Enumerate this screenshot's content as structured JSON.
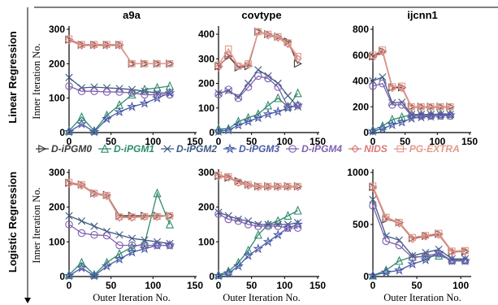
{
  "colors": {
    "D-iPGM0": "#3a3a3a",
    "D-iPGM1": "#2e8b6a",
    "D-iPGM2": "#3d5a80",
    "D-iPGM3": "#4a5aa8",
    "D-iPGM4": "#8060b0",
    "NIDS": "#d87878",
    "PG-EXTRA": "#e09a8a"
  },
  "markers": {
    "D-iPGM0": "triangle-right",
    "D-iPGM1": "triangle-up",
    "D-iPGM2": "x",
    "D-iPGM3": "star",
    "D-iPGM4": "circle",
    "NIDS": "diamond",
    "PG-EXTRA": "square"
  },
  "row_labels": [
    "Linear Regression",
    "Logistic Regression"
  ],
  "y_axis_label": "Inner Iteration No.",
  "x_axis_label": "Outer Iteration No.",
  "legend": [
    "D-iPGM0",
    "D-iPGM1",
    "D-iPGM2",
    "D-iPGM3",
    "D-iPGM4",
    "NIDS",
    "PG-EXTRA"
  ],
  "chart_data": [
    {
      "type": "line",
      "title": "a9a",
      "row": "Linear Regression",
      "xlim": [
        0,
        150
      ],
      "ylim": [
        0,
        300
      ],
      "xticks": [
        0,
        50,
        100,
        150
      ],
      "yticks": [
        0,
        100,
        200,
        300
      ],
      "x": [
        0,
        15,
        30,
        45,
        60,
        75,
        90,
        105,
        120
      ],
      "series": [
        {
          "name": "D-iPGM0",
          "values": [
            270,
            255,
            255,
            255,
            255,
            200,
            200,
            200,
            200
          ]
        },
        {
          "name": "D-iPGM1",
          "values": [
            5,
            45,
            5,
            50,
            80,
            110,
            125,
            130,
            135
          ]
        },
        {
          "name": "D-iPGM2",
          "values": [
            160,
            130,
            132,
            130,
            128,
            125,
            120,
            115,
            115
          ]
        },
        {
          "name": "D-iPGM3",
          "values": [
            2,
            25,
            2,
            40,
            60,
            75,
            85,
            100,
            115
          ]
        },
        {
          "name": "D-iPGM4",
          "values": [
            135,
            120,
            120,
            118,
            118,
            115,
            110,
            110,
            110
          ]
        },
        {
          "name": "NIDS",
          "values": [
            268,
            253,
            253,
            253,
            253,
            200,
            200,
            200,
            200
          ]
        },
        {
          "name": "PG-EXTRA",
          "values": [
            272,
            256,
            256,
            256,
            256,
            200,
            200,
            200,
            200
          ]
        }
      ]
    },
    {
      "type": "line",
      "title": "covtype",
      "row": "Linear Regression",
      "xlim": [
        0,
        150
      ],
      "ylim": [
        0,
        420
      ],
      "xticks": [
        0,
        50,
        100,
        150
      ],
      "yticks": [
        0,
        100,
        200,
        300,
        400
      ],
      "x": [
        0,
        15,
        30,
        45,
        60,
        75,
        90,
        105,
        120
      ],
      "series": [
        {
          "name": "D-iPGM0",
          "values": [
            270,
            310,
            265,
            270,
            410,
            400,
            390,
            370,
            280
          ]
        },
        {
          "name": "D-iPGM1",
          "values": [
            15,
            15,
            45,
            60,
            75,
            110,
            140,
            105,
            160
          ]
        },
        {
          "name": "D-iPGM2",
          "values": [
            160,
            170,
            145,
            200,
            255,
            230,
            200,
            150,
            105
          ]
        },
        {
          "name": "D-iPGM3",
          "values": [
            5,
            10,
            30,
            45,
            60,
            75,
            85,
            100,
            110
          ]
        },
        {
          "name": "D-iPGM4",
          "values": [
            155,
            175,
            140,
            185,
            230,
            220,
            185,
            105,
            110
          ]
        },
        {
          "name": "NIDS",
          "values": [
            265,
            315,
            270,
            275,
            410,
            395,
            385,
            360,
            300
          ]
        },
        {
          "name": "PG-EXTRA",
          "values": [
            275,
            340,
            270,
            280,
            410,
            400,
            390,
            365,
            310
          ]
        }
      ]
    },
    {
      "type": "line",
      "title": "ijcnn1",
      "row": "Linear Regression",
      "xlim": [
        0,
        150
      ],
      "ylim": [
        0,
        800
      ],
      "xticks": [
        0,
        50,
        100,
        150
      ],
      "yticks": [
        0,
        200,
        400,
        600,
        800
      ],
      "x": [
        0,
        15,
        30,
        45,
        60,
        75,
        90,
        105,
        120
      ],
      "series": [
        {
          "name": "D-iPGM0",
          "values": [
            590,
            630,
            350,
            350,
            200,
            200,
            200,
            200,
            200
          ]
        },
        {
          "name": "D-iPGM1",
          "values": [
            20,
            50,
            100,
            120,
            140,
            140,
            140,
            145,
            145
          ]
        },
        {
          "name": "D-iPGM2",
          "values": [
            400,
            430,
            230,
            235,
            140,
            140,
            140,
            140,
            140
          ]
        },
        {
          "name": "D-iPGM3",
          "values": [
            10,
            30,
            60,
            80,
            110,
            120,
            125,
            130,
            135
          ]
        },
        {
          "name": "D-iPGM4",
          "values": [
            360,
            380,
            215,
            215,
            130,
            130,
            130,
            130,
            130
          ]
        },
        {
          "name": "NIDS",
          "values": [
            580,
            625,
            345,
            345,
            195,
            195,
            195,
            195,
            195
          ]
        },
        {
          "name": "PG-EXTRA",
          "values": [
            600,
            640,
            355,
            360,
            200,
            200,
            200,
            200,
            200
          ]
        }
      ]
    },
    {
      "type": "line",
      "title": "",
      "row": "Logistic Regression",
      "xlim": [
        0,
        150
      ],
      "ylim": [
        0,
        300
      ],
      "xticks": [
        0,
        50,
        100,
        150
      ],
      "yticks": [
        0,
        100,
        200,
        300
      ],
      "x": [
        0,
        15,
        30,
        45,
        60,
        75,
        90,
        105,
        120
      ],
      "series": [
        {
          "name": "D-iPGM0",
          "values": [
            270,
            265,
            240,
            235,
            175,
            175,
            175,
            175,
            175
          ]
        },
        {
          "name": "D-iPGM1",
          "values": [
            5,
            40,
            5,
            40,
            65,
            85,
            95,
            240,
            150
          ]
        },
        {
          "name": "D-iPGM2",
          "values": [
            175,
            160,
            145,
            130,
            120,
            110,
            105,
            100,
            95
          ]
        },
        {
          "name": "D-iPGM3",
          "values": [
            2,
            25,
            2,
            30,
            50,
            70,
            80,
            90,
            90
          ]
        },
        {
          "name": "D-iPGM4",
          "values": [
            150,
            125,
            120,
            118,
            90,
            90,
            90,
            90,
            90
          ]
        },
        {
          "name": "NIDS",
          "values": [
            268,
            262,
            238,
            232,
            170,
            170,
            172,
            172,
            175
          ]
        },
        {
          "name": "PG-EXTRA",
          "values": [
            272,
            265,
            240,
            234,
            172,
            172,
            173,
            173,
            175
          ]
        }
      ]
    },
    {
      "type": "line",
      "title": "",
      "row": "Logistic Regression",
      "xlim": [
        0,
        150
      ],
      "ylim": [
        0,
        300
      ],
      "xticks": [
        0,
        50,
        100,
        150
      ],
      "yticks": [
        0,
        100,
        200,
        300
      ],
      "x": [
        0,
        15,
        30,
        45,
        60,
        75,
        90,
        105,
        120
      ],
      "series": [
        {
          "name": "D-iPGM0",
          "values": [
            290,
            285,
            275,
            265,
            260,
            260,
            260,
            260,
            260
          ]
        },
        {
          "name": "D-iPGM1",
          "values": [
            5,
            15,
            40,
            75,
            120,
            150,
            160,
            175,
            190
          ]
        },
        {
          "name": "D-iPGM2",
          "values": [
            185,
            175,
            165,
            160,
            150,
            150,
            150,
            150,
            155
          ]
        },
        {
          "name": "D-iPGM3",
          "values": [
            2,
            10,
            30,
            60,
            80,
            100,
            120,
            140,
            150
          ]
        },
        {
          "name": "D-iPGM4",
          "values": [
            180,
            165,
            160,
            150,
            145,
            145,
            145,
            140,
            140
          ]
        },
        {
          "name": "NIDS",
          "values": [
            288,
            285,
            270,
            262,
            258,
            258,
            258,
            258,
            258
          ]
        },
        {
          "name": "PG-EXTRA",
          "values": [
            292,
            288,
            272,
            265,
            260,
            260,
            260,
            260,
            260
          ]
        }
      ]
    },
    {
      "type": "line",
      "title": "",
      "row": "Logistic Regression",
      "xlim": [
        0,
        110
      ],
      "ylim": [
        0,
        1000
      ],
      "xticks": [
        0,
        50,
        100
      ],
      "yticks": [
        0,
        500,
        1000
      ],
      "x": [
        0,
        15,
        30,
        45,
        60,
        75,
        90,
        105
      ],
      "series": [
        {
          "name": "D-iPGM0",
          "values": [
            860,
            550,
            520,
            370,
            390,
            410,
            240,
            240
          ]
        },
        {
          "name": "D-iPGM1",
          "values": [
            10,
            60,
            150,
            190,
            190,
            200,
            160,
            160
          ]
        },
        {
          "name": "D-iPGM2",
          "values": [
            740,
            390,
            350,
            200,
            230,
            260,
            170,
            170
          ]
        },
        {
          "name": "D-iPGM3",
          "values": [
            10,
            40,
            60,
            120,
            160,
            230,
            150,
            150
          ]
        },
        {
          "name": "D-iPGM4",
          "values": [
            680,
            340,
            300,
            180,
            200,
            220,
            150,
            150
          ]
        },
        {
          "name": "NIDS",
          "values": [
            850,
            560,
            510,
            360,
            385,
            400,
            235,
            240
          ]
        },
        {
          "name": "PG-EXTRA",
          "values": [
            870,
            570,
            520,
            375,
            395,
            415,
            245,
            250
          ]
        }
      ]
    }
  ]
}
